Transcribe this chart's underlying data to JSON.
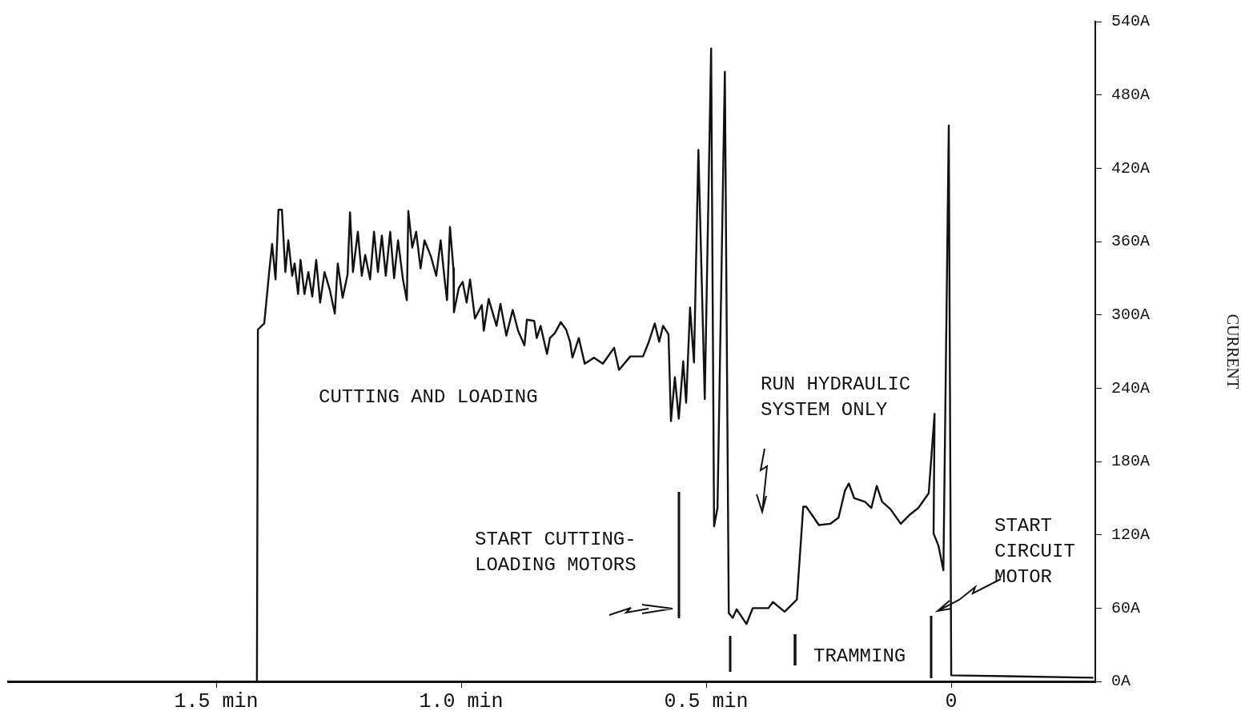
{
  "chart_data": {
    "type": "line",
    "ylabel": "CURRENT",
    "color": "#111111",
    "marker": "none",
    "line_style": "solid",
    "grid": false,
    "xlim": [
      1.925,
      -0.294
    ],
    "ylim": [
      0,
      540
    ],
    "xticks": [
      {
        "value": 1.5,
        "label": "1.5 min"
      },
      {
        "value": 1.0,
        "label": "1.0 min"
      },
      {
        "value": 0.5,
        "label": "0.5 min"
      },
      0
    ],
    "yticks": [
      {
        "value": 0,
        "label": "0A"
      },
      {
        "value": 60,
        "label": "60A"
      },
      {
        "value": 120,
        "label": "120A"
      },
      {
        "value": 180,
        "label": "180A"
      },
      {
        "value": 240,
        "label": "240A"
      },
      {
        "value": 300,
        "label": "300A"
      },
      {
        "value": 360,
        "label": "360A"
      },
      {
        "value": 420,
        "label": "420A"
      },
      {
        "value": 480,
        "label": "480A"
      },
      {
        "value": 540,
        "label": "540A"
      }
    ],
    "x": [
      1.417,
      1.415,
      1.402,
      1.392,
      1.386,
      1.379,
      1.373,
      1.366,
      1.359,
      1.353,
      1.345,
      1.34,
      1.333,
      1.328,
      1.32,
      1.312,
      1.304,
      1.296,
      1.288,
      1.279,
      1.268,
      1.258,
      1.252,
      1.242,
      1.232,
      1.227,
      1.221,
      1.211,
      1.203,
      1.196,
      1.186,
      1.178,
      1.17,
      1.162,
      1.154,
      1.145,
      1.137,
      1.129,
      1.119,
      1.111,
      1.108,
      1.1,
      1.092,
      1.083,
      1.075,
      1.062,
      1.051,
      1.042,
      1.034,
      1.029,
      1.023,
      1.016,
      1.015,
      1.005,
      0.997,
      0.989,
      0.982,
      0.972,
      0.958,
      0.954,
      0.944,
      0.928,
      0.92,
      0.908,
      0.895,
      0.884,
      0.871,
      0.866,
      0.851,
      0.846,
      0.838,
      0.825,
      0.819,
      0.809,
      0.797,
      0.786,
      0.778,
      0.773,
      0.76,
      0.748,
      0.729,
      0.711,
      0.688,
      0.678,
      0.655,
      0.629,
      0.618,
      0.605,
      0.596,
      0.588,
      0.577,
      0.572,
      0.564,
      0.556,
      0.547,
      0.541,
      0.533,
      0.525,
      0.516,
      0.503,
      0.49,
      0.484,
      0.477,
      0.462,
      0.454,
      0.446,
      0.438,
      0.418,
      0.405,
      0.373,
      0.364,
      0.34,
      0.315,
      0.302,
      0.296,
      0.27,
      0.247,
      0.23,
      0.217,
      0.209,
      0.198,
      0.176,
      0.163,
      0.152,
      0.141,
      0.124,
      0.103,
      0.083,
      0.067,
      0.046,
      0.034,
      0.036,
      0.026,
      0.016,
      0.005,
      0,
      -0.29
    ],
    "values": [
      0,
      288,
      293,
      335,
      358,
      329,
      386,
      386,
      335,
      361,
      332,
      342,
      317,
      345,
      317,
      335,
      315,
      345,
      310,
      335,
      320,
      301,
      342,
      314,
      333,
      384,
      335,
      368,
      332,
      349,
      329,
      368,
      335,
      365,
      332,
      368,
      330,
      361,
      329,
      312,
      385,
      355,
      368,
      338,
      361,
      348,
      332,
      361,
      329,
      312,
      372,
      338,
      302,
      322,
      327,
      310,
      329,
      297,
      308,
      287,
      313,
      291,
      309,
      283,
      304,
      287,
      275,
      296,
      295,
      281,
      291,
      268,
      281,
      285,
      294,
      288,
      278,
      265,
      281,
      260,
      265,
      260,
      273,
      255,
      266,
      266,
      277,
      293,
      278,
      291,
      284,
      213,
      249,
      215,
      262,
      228,
      306,
      261,
      435,
      231,
      518,
      127,
      142,
      499,
      56,
      52,
      59,
      47,
      60,
      60,
      65,
      57,
      67,
      143,
      143,
      128,
      129,
      134,
      156,
      162,
      150,
      147,
      142,
      160,
      147,
      141,
      129,
      137,
      142,
      154,
      219,
      121,
      111,
      91,
      455,
      5,
      3
    ],
    "annotations": [
      "CUTTING AND LOADING",
      "RUN HYDRAULIC\nSYSTEM ONLY",
      "START CUTTING-\nLOADING MOTORS",
      "START\nCIRCUIT\nMOTOR",
      "TRAMMING"
    ]
  }
}
